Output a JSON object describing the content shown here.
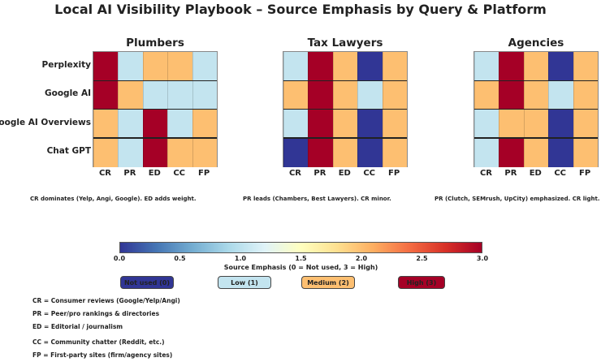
{
  "chart_data": {
    "type": "heatmap",
    "title": "Local AI Visibility Playbook – Source Emphasis by Query & Platform",
    "rows": [
      "Perplexity",
      "Google AI",
      "Google AI Overviews",
      "Chat GPT"
    ],
    "columns": [
      "CR",
      "PR",
      "ED",
      "CC",
      "FP"
    ],
    "panels": [
      {
        "title": "Plumbers",
        "values": [
          [
            3,
            1,
            2,
            2,
            1
          ],
          [
            3,
            2,
            1,
            1,
            1
          ],
          [
            2,
            1,
            3,
            1,
            2
          ],
          [
            2,
            1,
            3,
            2,
            2
          ]
        ],
        "note": "CR dominates (Yelp, Angi, Google). ED adds weight."
      },
      {
        "title": "Tax Lawyers",
        "values": [
          [
            1,
            3,
            2,
            0,
            2
          ],
          [
            2,
            3,
            2,
            1,
            2
          ],
          [
            1,
            3,
            2,
            0,
            2
          ],
          [
            0,
            3,
            2,
            0,
            2
          ]
        ],
        "note": "PR leads (Chambers, Best Lawyers). CR minor."
      },
      {
        "title": "Agencies",
        "values": [
          [
            1,
            3,
            2,
            0,
            2
          ],
          [
            2,
            3,
            2,
            1,
            2
          ],
          [
            1,
            2,
            2,
            0,
            2
          ],
          [
            1,
            3,
            2,
            0,
            2
          ]
        ],
        "note": "PR (Clutch, SEMrush, UpCity) emphasized. CR light."
      }
    ],
    "colorbar": {
      "range": [
        0,
        3
      ],
      "ticks": [
        "0.0",
        "0.5",
        "1.0",
        "1.5",
        "2.0",
        "2.5",
        "3.0"
      ],
      "label": "Source Emphasis (0 = Not used, 3 = High)"
    },
    "legend": [
      {
        "label": "Not used (0)",
        "color": "#313695"
      },
      {
        "label": "Low (1)",
        "color": "#c3e4ef"
      },
      {
        "label": "Medium (2)",
        "color": "#fdbf71"
      },
      {
        "label": "High (3)",
        "color": "#a50026"
      }
    ],
    "definitions": [
      "CR = Consumer reviews (Google/Yelp/Angi)",
      "PR = Peer/pro rankings & directories",
      "ED = Editorial / journalism",
      "CC = Community chatter (Reddit, etc.)",
      "FP = First-party sites (firm/agency sites)"
    ]
  }
}
